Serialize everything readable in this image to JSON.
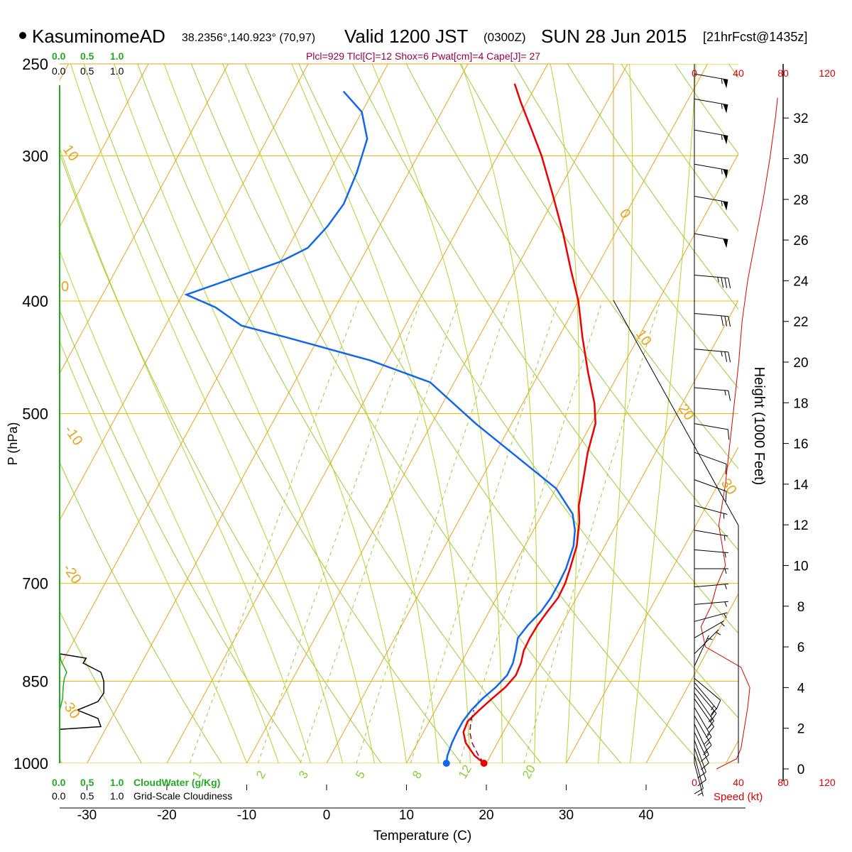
{
  "header": {
    "station": "KasuminomeAD",
    "coords": "38.2356°,140.923° (70,97)",
    "valid_prefix": "Valid 1200 JST",
    "valid_z": "(0300Z)",
    "valid_date": "SUN 28 Jun 2015",
    "forecast": "[21hrFcst@1435z]",
    "indices": "Plcl=929 Tlcl[C]=12 Shox=6 Pwat[cm]=4 Cape[J]= 27"
  },
  "cloud_scale": {
    "top_green": [
      "0.0",
      "0.5",
      "1.0"
    ],
    "top_black": [
      "0.0",
      "0.5",
      "1.0"
    ],
    "bottom_green": [
      "0.0",
      "0.5",
      "1.0"
    ],
    "bottom_black": [
      "0.0",
      "0.5",
      "1.0"
    ],
    "cloudwater_label": "CloudWater (g/Kg)",
    "cloudiness_label": "Grid-Scale Cloudiness"
  },
  "speed_scale": {
    "top": [
      "0",
      "40",
      "80",
      "120"
    ],
    "bottom": [
      "0",
      "40",
      "80",
      "120"
    ],
    "label": "Speed (kt)"
  },
  "height_axis": {
    "label": "Height (1000 Feet)",
    "ticks": [
      "0",
      "2",
      "4",
      "6",
      "8",
      "10",
      "12",
      "14",
      "16",
      "18",
      "20",
      "22",
      "24",
      "26",
      "28",
      "30",
      "32"
    ]
  },
  "chart_data": {
    "type": "line",
    "subtype": "skew-t log-p sounding",
    "xlabel": "Temperature (C)",
    "ylabel": "P (hPa)",
    "x_ticks": [
      -30,
      -20,
      -10,
      0,
      10,
      20,
      30,
      40
    ],
    "pressure_ticks": [
      250,
      300,
      400,
      500,
      700,
      850,
      1000
    ],
    "isotherm_labels": [
      "10",
      "0",
      "-10",
      "-20",
      "-30",
      "0",
      "10",
      "20",
      "30"
    ],
    "mixing_ratio_labels": [
      "1",
      "2",
      "3",
      "5",
      "8",
      "12",
      "20"
    ],
    "series": [
      {
        "name": "",
        "color": "#ee0000",
        "points": [
          [
            1000,
            19.7
          ],
          [
            985,
            18.0
          ],
          [
            960,
            16.0
          ],
          [
            940,
            15.0
          ],
          [
            920,
            14.8
          ],
          [
            900,
            15.5
          ],
          [
            880,
            16.3
          ],
          [
            860,
            17.2
          ],
          [
            840,
            17.7
          ],
          [
            820,
            17.5
          ],
          [
            800,
            17.0
          ],
          [
            780,
            16.9
          ],
          [
            760,
            17.0
          ],
          [
            740,
            17.3
          ],
          [
            720,
            17.7
          ],
          [
            700,
            17.6
          ],
          [
            680,
            17.2
          ],
          [
            650,
            16.5
          ],
          [
            620,
            15.2
          ],
          [
            600,
            14.0
          ],
          [
            570,
            12.8
          ],
          [
            540,
            11.5
          ],
          [
            510,
            10.5
          ],
          [
            490,
            9.0
          ],
          [
            460,
            6.0
          ],
          [
            430,
            3.0
          ],
          [
            400,
            0.0
          ],
          [
            375,
            -3.2
          ],
          [
            350,
            -6.5
          ],
          [
            325,
            -10.3
          ],
          [
            300,
            -14.5
          ],
          [
            285,
            -17.5
          ],
          [
            270,
            -20.7
          ],
          [
            260,
            -22.8
          ]
        ]
      },
      {
        "name": "",
        "color": "#1166ee",
        "points": [
          [
            1000,
            15.0
          ],
          [
            985,
            14.6
          ],
          [
            960,
            14.3
          ],
          [
            940,
            14.2
          ],
          [
            920,
            14.2
          ],
          [
            900,
            14.5
          ],
          [
            880,
            15.1
          ],
          [
            860,
            16.0
          ],
          [
            840,
            16.6
          ],
          [
            820,
            16.5
          ],
          [
            800,
            16.0
          ],
          [
            780,
            15.4
          ],
          [
            760,
            15.8
          ],
          [
            740,
            16.5
          ],
          [
            720,
            16.8
          ],
          [
            700,
            16.8
          ],
          [
            680,
            16.7
          ],
          [
            650,
            16.1
          ],
          [
            630,
            15.2
          ],
          [
            610,
            13.8
          ],
          [
            580,
            10.0
          ],
          [
            550,
            4.0
          ],
          [
            510,
            -4.5
          ],
          [
            470,
            -13.0
          ],
          [
            450,
            -22.0
          ],
          [
            430,
            -34.0
          ],
          [
            420,
            -40.5
          ],
          [
            405,
            -45.0
          ],
          [
            395,
            -49.5
          ],
          [
            370,
            -40.0
          ],
          [
            360,
            -37.5
          ],
          [
            345,
            -36.5
          ],
          [
            330,
            -36.0
          ],
          [
            310,
            -36.5
          ],
          [
            290,
            -37.5
          ],
          [
            275,
            -40.0
          ],
          [
            264,
            -43.7
          ]
        ]
      },
      {
        "name": "",
        "color": "#990044",
        "dashed": true,
        "points": [
          [
            1000,
            19.7
          ],
          [
            985,
            18.5
          ],
          [
            960,
            16.8
          ],
          [
            940,
            15.8
          ],
          [
            920,
            15.2
          ],
          [
            900,
            14.8
          ]
        ]
      }
    ],
    "surface_points": [
      {
        "kind": "temperature",
        "p": 1000,
        "t": 19.7,
        "color": "#ee0000"
      },
      {
        "kind": "dewpoint",
        "p": 1000,
        "t": 15.0,
        "color": "#1166ee"
      }
    ],
    "wind_speed_profile": {
      "color": "#dd0000",
      "points": [
        [
          0,
          20
        ],
        [
          0.5,
          38
        ],
        [
          1,
          42
        ],
        [
          2,
          45
        ],
        [
          3,
          48
        ],
        [
          4,
          50
        ],
        [
          5,
          42
        ],
        [
          6,
          10
        ],
        [
          7,
          6
        ],
        [
          8,
          15
        ],
        [
          9,
          20
        ],
        [
          10,
          28
        ],
        [
          12,
          22
        ],
        [
          14,
          28
        ],
        [
          16,
          32
        ],
        [
          18,
          36
        ],
        [
          20,
          40
        ],
        [
          22,
          43
        ],
        [
          24,
          48
        ],
        [
          26,
          55
        ],
        [
          28,
          62
        ],
        [
          30,
          68
        ],
        [
          32,
          73
        ],
        [
          33,
          75
        ]
      ]
    },
    "wind_barbs": [
      {
        "p": 1000,
        "dir": 165,
        "spd": 5
      },
      {
        "p": 985,
        "dir": 165,
        "spd": 10
      },
      {
        "p": 970,
        "dir": 160,
        "spd": 10
      },
      {
        "p": 955,
        "dir": 160,
        "spd": 10
      },
      {
        "p": 940,
        "dir": 155,
        "spd": 10
      },
      {
        "p": 925,
        "dir": 155,
        "spd": 15
      },
      {
        "p": 910,
        "dir": 150,
        "spd": 15
      },
      {
        "p": 895,
        "dir": 150,
        "spd": 15
      },
      {
        "p": 880,
        "dir": 145,
        "spd": 15
      },
      {
        "p": 870,
        "dir": 145,
        "spd": 15
      },
      {
        "p": 860,
        "dir": 140,
        "spd": 15
      },
      {
        "p": 852,
        "dir": 140,
        "spd": 15
      },
      {
        "p": 845,
        "dir": 130,
        "spd": 10
      },
      {
        "p": 825,
        "dir": 25,
        "spd": 5
      },
      {
        "p": 805,
        "dir": 45,
        "spd": 5
      },
      {
        "p": 780,
        "dir": 60,
        "spd": 5
      },
      {
        "p": 755,
        "dir": 75,
        "spd": 5
      },
      {
        "p": 730,
        "dir": 85,
        "spd": 5
      },
      {
        "p": 705,
        "dir": 85,
        "spd": 5
      },
      {
        "p": 680,
        "dir": 90,
        "spd": 5
      },
      {
        "p": 655,
        "dir": 95,
        "spd": 5
      },
      {
        "p": 630,
        "dir": 100,
        "spd": 5
      },
      {
        "p": 600,
        "dir": 105,
        "spd": 5
      },
      {
        "p": 570,
        "dir": 110,
        "spd": 10
      },
      {
        "p": 540,
        "dir": 110,
        "spd": 10
      },
      {
        "p": 510,
        "dir": 100,
        "spd": 10
      },
      {
        "p": 475,
        "dir": 95,
        "spd": 15
      },
      {
        "p": 440,
        "dir": 95,
        "spd": 25
      },
      {
        "p": 410,
        "dir": 95,
        "spd": 30
      },
      {
        "p": 380,
        "dir": 95,
        "spd": 35
      },
      {
        "p": 350,
        "dir": 100,
        "spd": 50
      },
      {
        "p": 325,
        "dir": 100,
        "spd": 55
      },
      {
        "p": 305,
        "dir": 100,
        "spd": 55
      },
      {
        "p": 285,
        "dir": 100,
        "spd": 55
      },
      {
        "p": 268,
        "dir": 100,
        "spd": 55
      },
      {
        "p": 255,
        "dir": 100,
        "spd": 55
      }
    ],
    "cloud_water": [
      [
        1000,
        0.0
      ],
      [
        900,
        0.0
      ],
      [
        880,
        0.05
      ],
      [
        860,
        0.06
      ],
      [
        845,
        0.08
      ],
      [
        835,
        0.12
      ],
      [
        825,
        0.07
      ],
      [
        815,
        0.02
      ],
      [
        800,
        0.0
      ]
    ],
    "cloudiness": [
      [
        935,
        0.0
      ],
      [
        930,
        0.7
      ],
      [
        915,
        0.65
      ],
      [
        900,
        0.3
      ],
      [
        885,
        0.65
      ],
      [
        870,
        0.75
      ],
      [
        850,
        0.75
      ],
      [
        835,
        0.7
      ],
      [
        820,
        0.4
      ],
      [
        812,
        0.45
      ],
      [
        805,
        0.0
      ]
    ]
  }
}
